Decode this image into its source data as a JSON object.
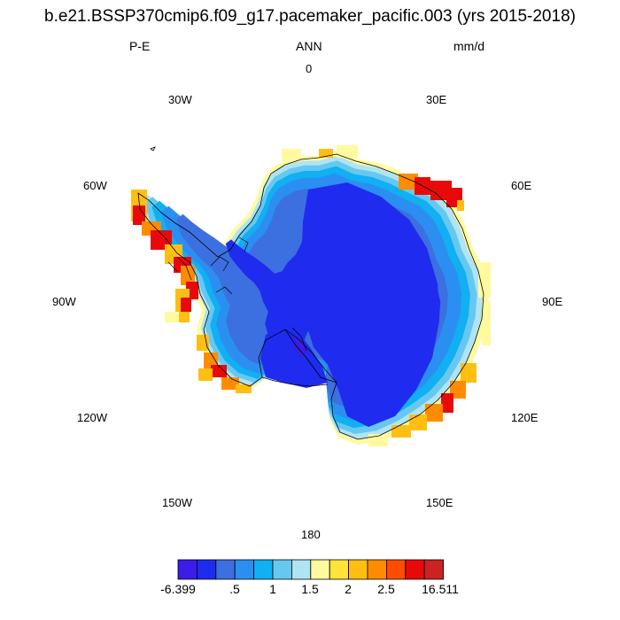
{
  "title": "b.e21.BSSP370cmip6.f09_g17.pacemaker_pacific.003 (yrs 2015-2018)",
  "subtitle": {
    "left": "P-E",
    "center": "ANN",
    "right": "mm/d"
  },
  "longitude_labels": {
    "lon_0": "0",
    "lon_30e": "30E",
    "lon_60e": "60E",
    "lon_90e": "90E",
    "lon_120e": "120E",
    "lon_150e": "150E",
    "lon_180": "180",
    "lon_150w": "150W",
    "lon_120w": "120W",
    "lon_90w": "90W",
    "lon_60w": "60W",
    "lon_30w": "30W"
  },
  "colorbar": {
    "colors": [
      "#3a1de6",
      "#1f2bef",
      "#3c6fe0",
      "#2b8ff2",
      "#10b0f2",
      "#66c8f0",
      "#b0e4f2",
      "#fffaa0",
      "#ffe23a",
      "#ffbe12",
      "#ff8c00",
      "#ff4d00",
      "#e80a0a",
      "#cc2222"
    ],
    "labels": [
      "-6.399",
      ".5",
      "1",
      "1.5",
      "2",
      "2.5",
      "16.511"
    ]
  },
  "map_colors": {
    "interior": "#1f2bef",
    "coastal_mid": "#3c6fe0",
    "coastal_light": "#2b8ff2",
    "coastal_cyan": "#10b0f2",
    "coastal_pale": "#66c8f0",
    "coastal_ice": "#b0e4f2",
    "edge_yellow": "#fffaa0",
    "edge_gold": "#ffbe12",
    "edge_orange": "#ff8c00",
    "edge_red": "#e80a0a",
    "shelf_violet": "#3a1de6",
    "coastline": "#000000"
  }
}
